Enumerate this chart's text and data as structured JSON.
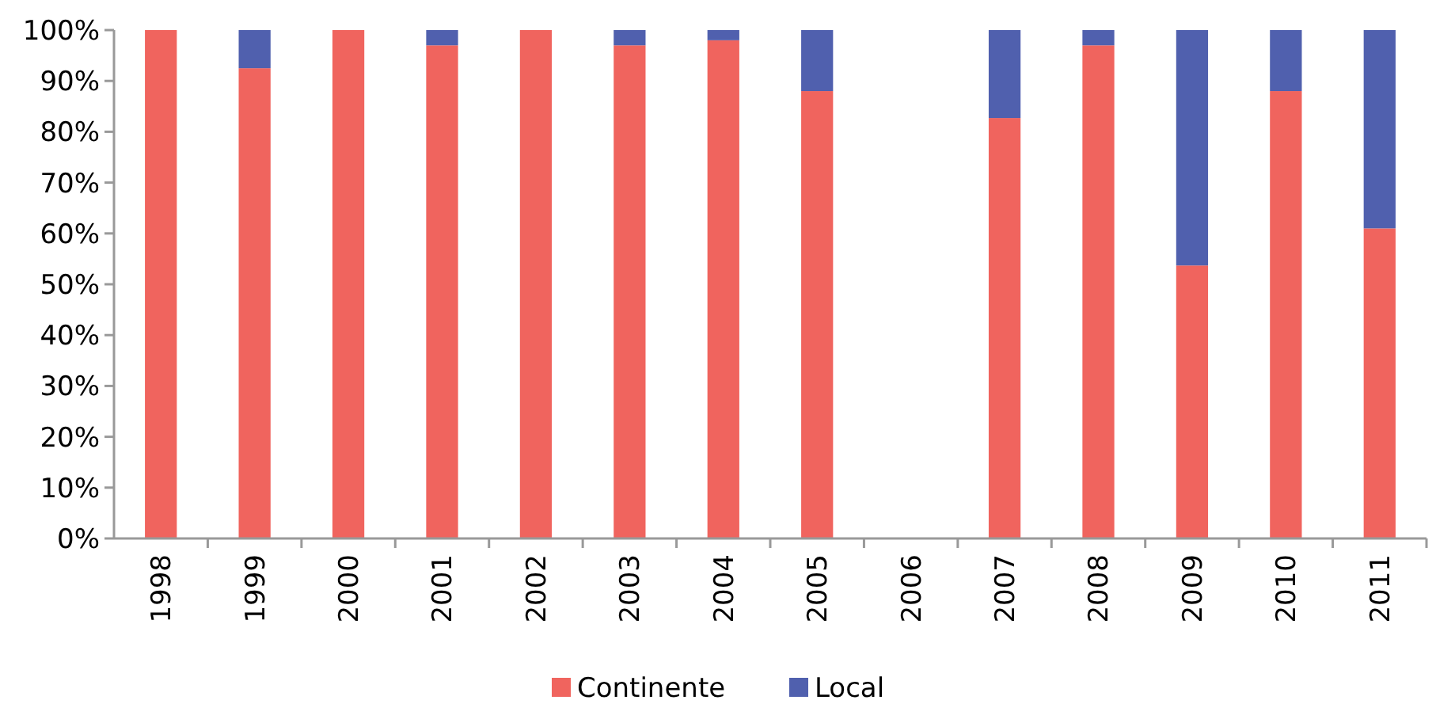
{
  "chart_data": {
    "type": "bar",
    "stacked": true,
    "categories": [
      "1998",
      "1999",
      "2000",
      "2001",
      "2002",
      "2003",
      "2004",
      "2005",
      "2006",
      "2007",
      "2008",
      "2009",
      "2010",
      "2011"
    ],
    "series": [
      {
        "name": "Continente",
        "color": "#f0645e",
        "values": [
          100,
          92.5,
          100,
          97,
          100,
          97,
          98,
          88,
          null,
          82.7,
          97,
          53.7,
          88,
          61
        ]
      },
      {
        "name": "Local",
        "color": "#5060ae",
        "values": [
          0,
          7.5,
          0,
          3,
          0,
          3,
          2,
          12,
          null,
          17.3,
          3,
          46.3,
          12,
          39
        ]
      }
    ],
    "ylim": [
      0,
      100
    ],
    "yticks": [
      {
        "value": 0,
        "label": "0%"
      },
      {
        "value": 10,
        "label": "10%"
      },
      {
        "value": 20,
        "label": "20%"
      },
      {
        "value": 30,
        "label": "30%"
      },
      {
        "value": 40,
        "label": "40%"
      },
      {
        "value": 50,
        "label": "50%"
      },
      {
        "value": 60,
        "label": "60%"
      },
      {
        "value": 70,
        "label": "70%"
      },
      {
        "value": 80,
        "label": "80%"
      },
      {
        "value": 90,
        "label": "90%"
      },
      {
        "value": 100,
        "label": "100%"
      }
    ],
    "grid": false,
    "legend": "bottom"
  }
}
